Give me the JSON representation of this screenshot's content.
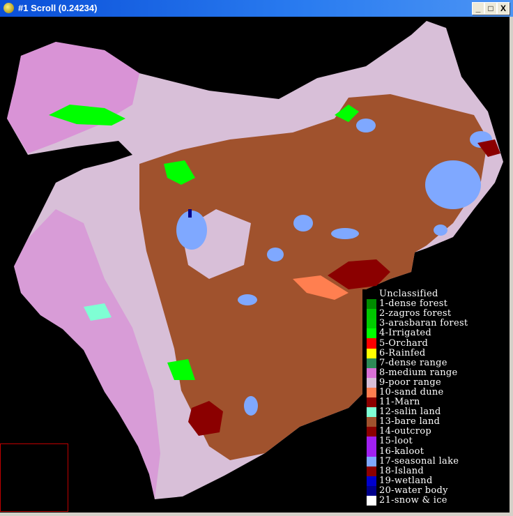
{
  "window": {
    "title": "#1 Scroll (0.24234)",
    "buttons": {
      "minimize": "_",
      "maximize": "□",
      "close": "X"
    }
  },
  "colors": {
    "titlebar": "#0a4fd8",
    "background": "#000000",
    "zoom_box": "#c00000"
  },
  "legend": [
    {
      "label": "Unclassified",
      "color": "#000000"
    },
    {
      "label": "1-dense forest",
      "color": "#008b00"
    },
    {
      "label": "2-zagros forest",
      "color": "#00c800"
    },
    {
      "label": "3-arasbaran forest",
      "color": "#00cd00"
    },
    {
      "label": "4-Irrigated",
      "color": "#00ff00"
    },
    {
      "label": "5-Orchard",
      "color": "#ff0000"
    },
    {
      "label": "6-Rainfed",
      "color": "#ffff00"
    },
    {
      "label": "7-dense range",
      "color": "#2e8b57"
    },
    {
      "label": "8-medium range",
      "color": "#da70d6"
    },
    {
      "label": "9-poor range",
      "color": "#d8bfd8"
    },
    {
      "label": "10-sand dune",
      "color": "#ff7f50"
    },
    {
      "label": "11-Marn",
      "color": "#8b0000"
    },
    {
      "label": "12-salin land",
      "color": "#7fffd4"
    },
    {
      "label": "13-bare land",
      "color": "#a0522d"
    },
    {
      "label": "14-outcrop",
      "color": "#8b0000"
    },
    {
      "label": "15-loot",
      "color": "#a020f0"
    },
    {
      "label": "16-kaloot",
      "color": "#a020f0"
    },
    {
      "label": "17-seasonal lake",
      "color": "#7fa8ff"
    },
    {
      "label": "18-Island",
      "color": "#8b0000"
    },
    {
      "label": "19-wetland",
      "color": "#0000cd"
    },
    {
      "label": "20-water body",
      "color": "#00008b"
    },
    {
      "label": "21-snow & ice",
      "color": "#ffffff"
    }
  ]
}
